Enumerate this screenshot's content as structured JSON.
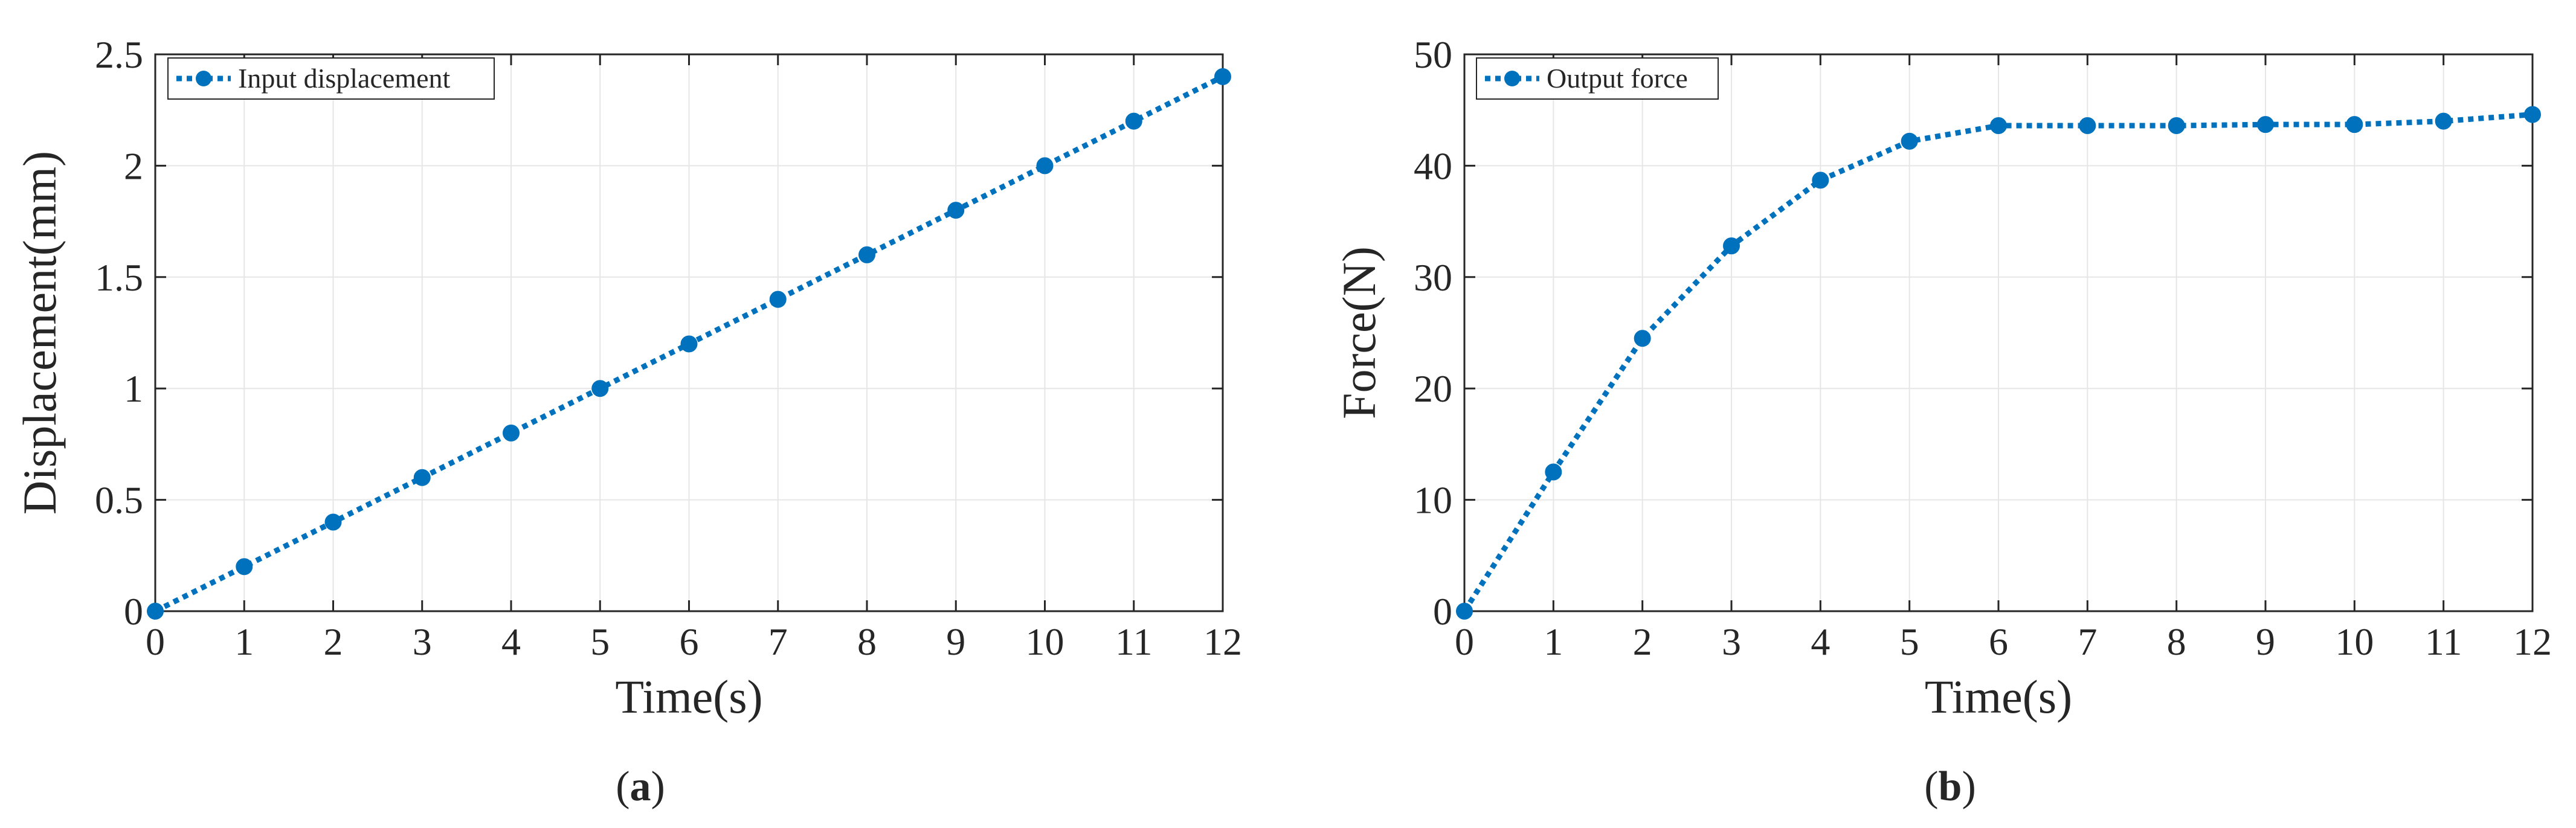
{
  "chart_data": [
    {
      "type": "line",
      "panel_label": "a",
      "title": "",
      "xlabel": "Time(s)",
      "ylabel": "Displacement(mm)",
      "xlim": [
        0,
        12
      ],
      "ylim": [
        0,
        2.5
      ],
      "xticks": [
        "0",
        "1",
        "2",
        "3",
        "4",
        "5",
        "6",
        "7",
        "8",
        "9",
        "10",
        "11",
        "12"
      ],
      "yticks": [
        "0",
        "0.5",
        "1",
        "1.5",
        "2",
        "2.5"
      ],
      "grid": true,
      "legend_position": "top-left",
      "series": [
        {
          "name": "Input displacement",
          "color": "#0072BD",
          "line_style": "dotted",
          "marker": "circle",
          "x": [
            0,
            1,
            2,
            3,
            4,
            5,
            6,
            7,
            8,
            9,
            10,
            11,
            12
          ],
          "y": [
            0,
            0.2,
            0.4,
            0.6,
            0.8,
            1.0,
            1.2,
            1.4,
            1.6,
            1.8,
            2.0,
            2.2,
            2.4
          ]
        }
      ]
    },
    {
      "type": "line",
      "panel_label": "b",
      "title": "",
      "xlabel": "Time(s)",
      "ylabel": "Force(N)",
      "xlim": [
        0,
        12
      ],
      "ylim": [
        0,
        50
      ],
      "xticks": [
        "0",
        "1",
        "2",
        "3",
        "4",
        "5",
        "6",
        "7",
        "8",
        "9",
        "10",
        "11",
        "12"
      ],
      "yticks": [
        "0",
        "10",
        "20",
        "30",
        "40",
        "50"
      ],
      "grid": true,
      "legend_position": "top-left",
      "series": [
        {
          "name": "Output force",
          "color": "#0072BD",
          "line_style": "dotted",
          "marker": "circle",
          "x": [
            0,
            1,
            2,
            3,
            4,
            5,
            6,
            7,
            8,
            9,
            10,
            11,
            12
          ],
          "y": [
            0,
            12.5,
            24.5,
            32.8,
            38.7,
            42.2,
            43.6,
            43.6,
            43.6,
            43.7,
            43.7,
            44.0,
            44.6
          ]
        }
      ]
    }
  ]
}
